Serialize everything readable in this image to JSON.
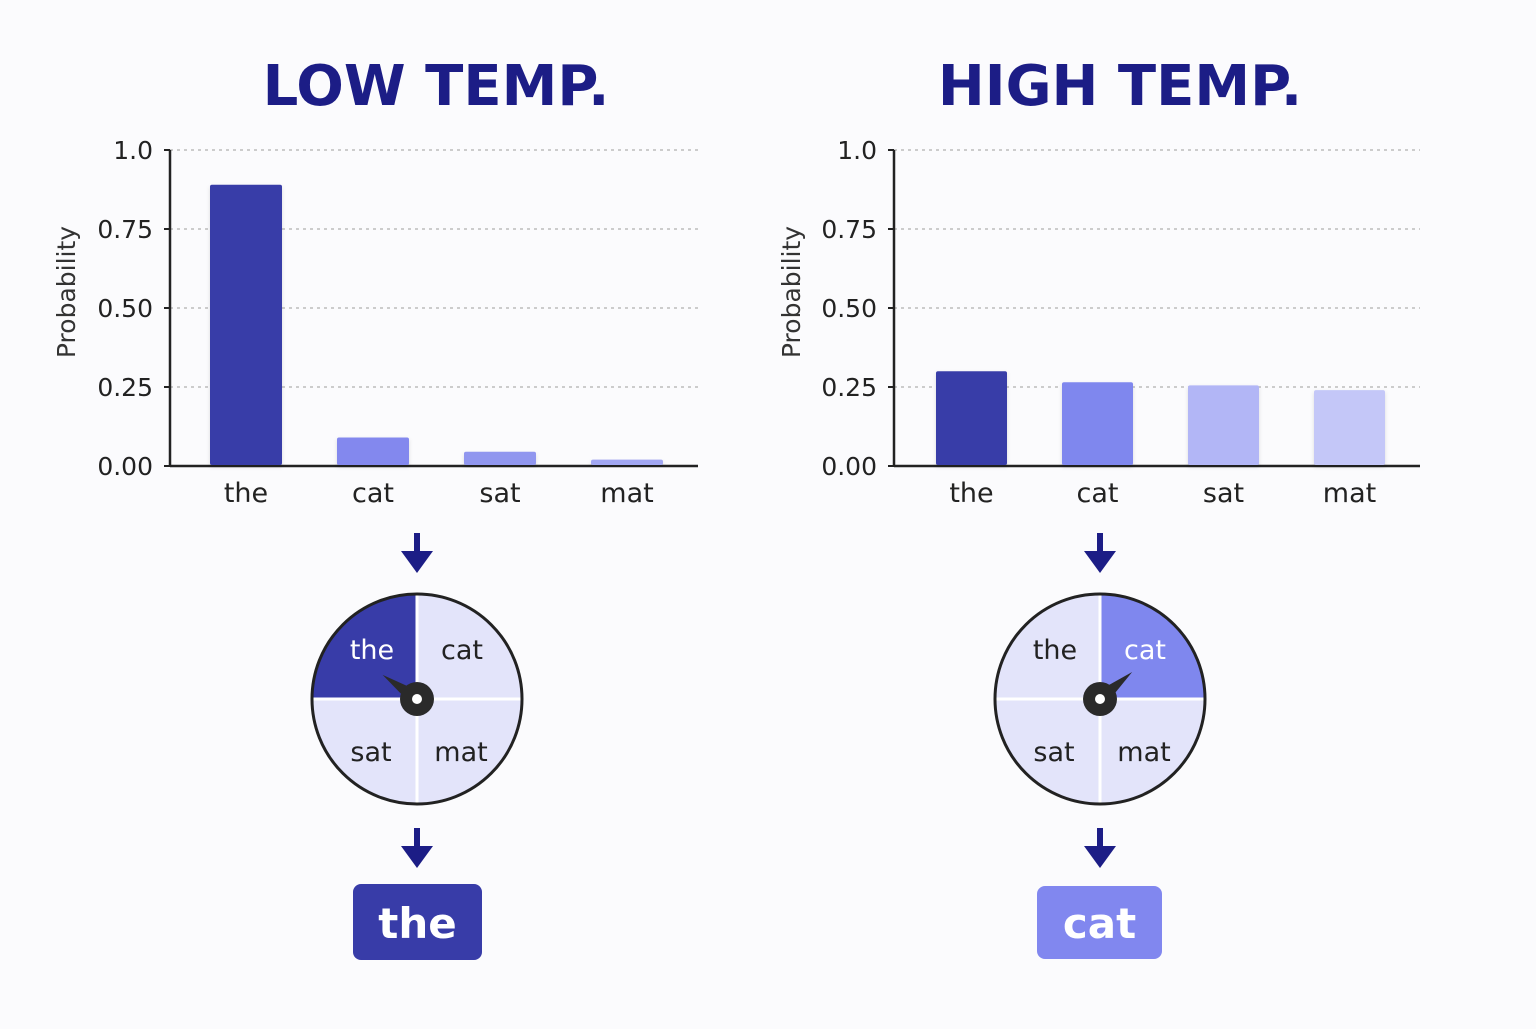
{
  "colors": {
    "title": "#1c1d86",
    "bar_the": "#383ca8",
    "bar_cat": "#7f87ee",
    "bar_sat": "#b2b6f6",
    "bar_mat": "#c4c7f8",
    "low_cat": "#8388ee",
    "low_sat": "#9096ef",
    "low_mat": "#a2a7f3",
    "wheel_bg": "#e3e4fa",
    "arrow": "#1c1d86",
    "axis": "#222222",
    "grid": "#bcbcbc",
    "result_low": "#383ca8",
    "result_high": "#8187ef"
  },
  "chart_data": [
    {
      "type": "bar",
      "title": "LOW TEMP.",
      "ylabel": "Probability",
      "xlabel": "",
      "categories": [
        "the",
        "cat",
        "sat",
        "mat"
      ],
      "values": [
        0.89,
        0.09,
        0.045,
        0.02
      ],
      "ylim": [
        0,
        1.0
      ],
      "yticks": [
        "0.00",
        "0.25",
        "0.50",
        "0.75",
        "1.0"
      ],
      "grid": true,
      "spinner": {
        "segments": [
          "the",
          "cat",
          "sat",
          "mat"
        ],
        "highlighted": "the",
        "pointer_icon": "spinner-needle-icon"
      },
      "result": "the"
    },
    {
      "type": "bar",
      "title": "HIGH TEMP.",
      "ylabel": "Probability",
      "xlabel": "",
      "categories": [
        "the",
        "cat",
        "sat",
        "mat"
      ],
      "values": [
        0.3,
        0.265,
        0.255,
        0.24
      ],
      "ylim": [
        0,
        1.0
      ],
      "yticks": [
        "0.00",
        "0.25",
        "0.50",
        "0.75",
        "1.0"
      ],
      "grid": true,
      "spinner": {
        "segments": [
          "the",
          "cat",
          "sat",
          "mat"
        ],
        "highlighted": "cat",
        "pointer_icon": "spinner-needle-icon"
      },
      "result": "cat"
    }
  ]
}
